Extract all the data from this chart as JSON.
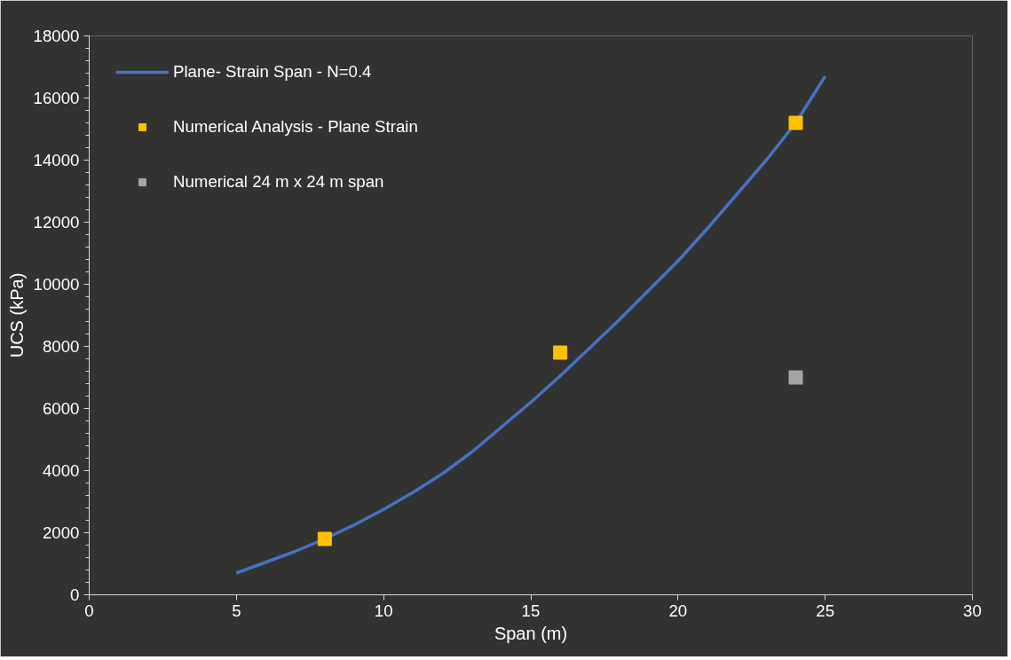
{
  "chart_data": {
    "type": "scatter",
    "xlabel": "Span (m)",
    "ylabel": "UCS (kPa)",
    "xlim": [
      0,
      30
    ],
    "xticks": [
      0,
      5,
      10,
      15,
      20,
      25,
      30
    ],
    "ylim": [
      0,
      18000
    ],
    "yticks": [
      0,
      2000,
      4000,
      6000,
      8000,
      10000,
      12000,
      14000,
      16000,
      18000
    ],
    "grid": false,
    "legend": "top left",
    "series": [
      {
        "name": "Plane- Strain Span - N=0.4",
        "type": "line",
        "color": "#4472c4",
        "marker": "none",
        "line_style": "solid",
        "x": [
          5,
          6,
          7,
          8,
          9,
          10,
          11,
          12,
          13,
          14,
          15,
          16,
          17,
          18,
          19,
          20,
          21,
          22,
          23,
          24,
          25
        ],
        "values": [
          700,
          1050,
          1400,
          1800,
          2250,
          2750,
          3300,
          3900,
          4600,
          5400,
          6200,
          7050,
          7950,
          8850,
          9800,
          10750,
          11800,
          12900,
          14000,
          15200,
          16700
        ]
      },
      {
        "name": "Numerical Analysis - Plane Strain",
        "color": "#ffc000",
        "marker": "square",
        "x": [
          8,
          16,
          24
        ],
        "values": [
          1800,
          7800,
          15200
        ]
      },
      {
        "name": "Numerical 24 m x 24 m span",
        "color": "#a5a5a5",
        "marker": "square",
        "x": [
          24
        ],
        "values": [
          7000
        ]
      }
    ]
  }
}
